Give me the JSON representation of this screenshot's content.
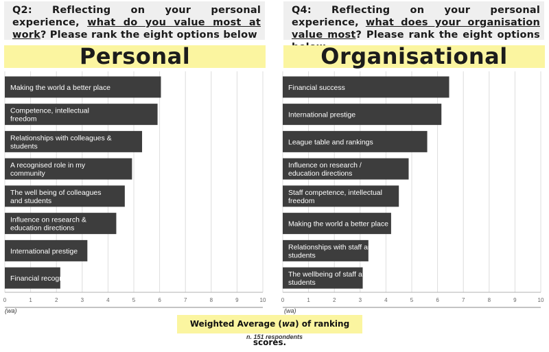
{
  "questions": {
    "left": {
      "prefix": "Q2: Reflecting on your personal experience, ",
      "underlined": "what do you value most at work",
      "suffix": "? Please rank the eight options below"
    },
    "right": {
      "prefix": "Q4: Reflecting on your personal experience, ",
      "underlined": "what does your organisation value most",
      "suffix": "? Please rank the eight options below"
    }
  },
  "footer": {
    "label_prefix": "Weighted Average (",
    "label_italic": "wa",
    "label_suffix": ") of ranking scores.",
    "respondents": "n. 151 respondents",
    "wa_note": "(wa)"
  },
  "colors": {
    "bar": "#3d3d3d",
    "bar_text": "#ffffff",
    "highlight": "#fbf5a0",
    "question_bg": "#efefef"
  },
  "chart_data": [
    {
      "type": "bar",
      "orientation": "horizontal",
      "title": "Personal",
      "categories": [
        "Making the world a better place",
        "Competence, intellectual freedom",
        "Relationships with colleagues & students",
        "A recognised role in my community",
        "The well being of colleagues and students",
        "Influence on research & education directions",
        "International prestige",
        "Financial recognition"
      ],
      "values": [
        6.05,
        5.92,
        5.32,
        4.93,
        4.65,
        4.32,
        3.2,
        2.15
      ],
      "xlim": [
        0,
        10
      ],
      "xticks": [
        "0",
        "1",
        "2",
        "3",
        "4",
        "5",
        "6",
        "7",
        "8",
        "9",
        "10"
      ],
      "xlabel": "(wa)",
      "grid": true
    },
    {
      "type": "bar",
      "orientation": "horizontal",
      "title": "Organisational",
      "categories": [
        "Financial success",
        "International prestige",
        "League table and rankings",
        "Influence on research / education directions",
        "Staff competence, intellectual freedom",
        "Making the world a better place",
        "Relationships with staff and students",
        "The wellbeing of staff and students"
      ],
      "values": [
        6.45,
        6.15,
        5.6,
        4.88,
        4.5,
        4.2,
        3.32,
        3.1
      ],
      "xlim": [
        0,
        10
      ],
      "xticks": [
        "0",
        "1",
        "2",
        "3",
        "4",
        "5",
        "6",
        "7",
        "8",
        "9",
        "10"
      ],
      "xlabel": "(wa)",
      "grid": true
    }
  ]
}
